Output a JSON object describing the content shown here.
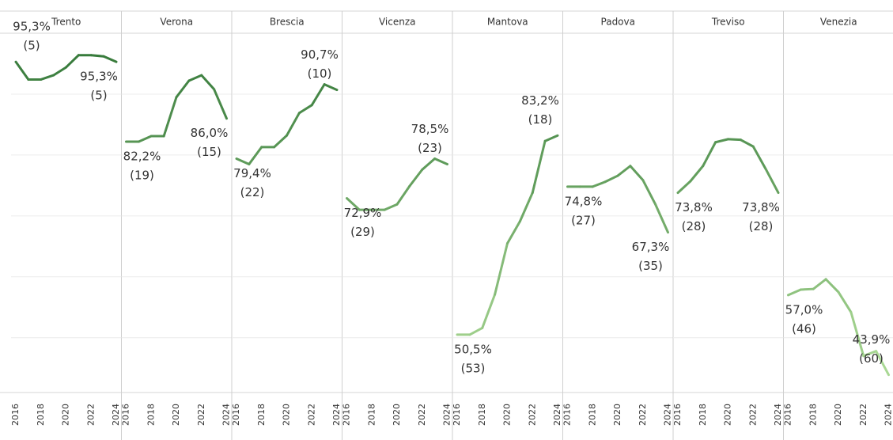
{
  "chart_data": [
    {
      "type": "line",
      "title": "Trento",
      "x": [
        2016,
        2017,
        2018,
        2019,
        2020,
        2021,
        2022,
        2023,
        2024
      ],
      "xticks": [
        2016,
        2018,
        2020,
        2022,
        2024
      ],
      "values": [
        95.3,
        92.4,
        92.4,
        93.1,
        94.4,
        96.4,
        96.4,
        96.2,
        95.3
      ],
      "value_labels": [
        "95,3%",
        null,
        null,
        null,
        null,
        null,
        null,
        null,
        "95,3%"
      ],
      "rank_labels": [
        "(5)",
        null,
        null,
        null,
        null,
        null,
        null,
        null,
        "(5)"
      ],
      "ylim": [
        41,
        100
      ],
      "yticks": [
        50,
        60,
        70,
        80,
        90
      ],
      "color_low": "#b4e19c",
      "color_high": "#2f7435"
    },
    {
      "type": "line",
      "title": "Verona",
      "x": [
        2016,
        2017,
        2018,
        2019,
        2020,
        2021,
        2022,
        2023,
        2024
      ],
      "xticks": [
        2016,
        2018,
        2020,
        2022,
        2024
      ],
      "values": [
        82.2,
        82.2,
        83.1,
        83.1,
        89.5,
        92.2,
        93.1,
        90.8,
        86.0
      ],
      "value_labels": [
        "82,2%",
        null,
        null,
        null,
        null,
        null,
        null,
        null,
        "86,0%"
      ],
      "rank_labels": [
        "(19)",
        null,
        null,
        null,
        null,
        null,
        null,
        null,
        "(15)"
      ],
      "ylim": [
        41,
        100
      ],
      "yticks": [
        50,
        60,
        70,
        80,
        90
      ],
      "color_low": "#b4e19c",
      "color_high": "#2f7435"
    },
    {
      "type": "line",
      "title": "Brescia",
      "x": [
        2016,
        2017,
        2018,
        2019,
        2020,
        2021,
        2022,
        2023,
        2024
      ],
      "xticks": [
        2016,
        2018,
        2020,
        2022,
        2024
      ],
      "values": [
        79.4,
        78.5,
        81.3,
        81.3,
        83.2,
        86.9,
        88.2,
        91.6,
        90.7
      ],
      "value_labels": [
        "79,4%",
        null,
        null,
        null,
        null,
        null,
        null,
        null,
        "90,7%"
      ],
      "rank_labels": [
        "(22)",
        null,
        null,
        null,
        null,
        null,
        null,
        null,
        "(10)"
      ],
      "ylim": [
        41,
        100
      ],
      "yticks": [
        50,
        60,
        70,
        80,
        90
      ],
      "color_low": "#b4e19c",
      "color_high": "#2f7435"
    },
    {
      "type": "line",
      "title": "Vicenza",
      "x": [
        2016,
        2017,
        2018,
        2019,
        2020,
        2021,
        2022,
        2023,
        2024
      ],
      "xticks": [
        2016,
        2018,
        2020,
        2022,
        2024
      ],
      "values": [
        72.9,
        71.0,
        71.0,
        71.0,
        71.9,
        74.9,
        77.6,
        79.4,
        78.5
      ],
      "value_labels": [
        "72,9%",
        null,
        null,
        null,
        null,
        null,
        null,
        null,
        "78,5%"
      ],
      "rank_labels": [
        "(29)",
        null,
        null,
        null,
        null,
        null,
        null,
        null,
        "(23)"
      ],
      "ylim": [
        41,
        100
      ],
      "yticks": [
        50,
        60,
        70,
        80,
        90
      ],
      "color_low": "#b4e19c",
      "color_high": "#2f7435"
    },
    {
      "type": "line",
      "title": "Mantova",
      "x": [
        2016,
        2017,
        2018,
        2019,
        2020,
        2021,
        2022,
        2023,
        2024
      ],
      "xticks": [
        2016,
        2018,
        2020,
        2022,
        2024
      ],
      "values": [
        50.5,
        50.5,
        51.6,
        57.1,
        65.5,
        69.1,
        73.8,
        82.3,
        83.2
      ],
      "value_labels": [
        "50,5%",
        null,
        null,
        null,
        null,
        null,
        null,
        null,
        "83,2%"
      ],
      "rank_labels": [
        "(53)",
        null,
        null,
        null,
        null,
        null,
        null,
        null,
        "(18)"
      ],
      "ylim": [
        41,
        100
      ],
      "yticks": [
        50,
        60,
        70,
        80,
        90
      ],
      "color_low": "#b4e19c",
      "color_high": "#2f7435"
    },
    {
      "type": "line",
      "title": "Padova",
      "x": [
        2016,
        2017,
        2018,
        2019,
        2020,
        2021,
        2022,
        2023,
        2024
      ],
      "xticks": [
        2016,
        2018,
        2020,
        2022,
        2024
      ],
      "values": [
        74.8,
        74.8,
        74.8,
        75.6,
        76.6,
        78.2,
        75.9,
        71.9,
        67.3
      ],
      "value_labels": [
        "74,8%",
        null,
        null,
        null,
        null,
        null,
        null,
        null,
        "67,3%"
      ],
      "rank_labels": [
        "(27)",
        null,
        null,
        null,
        null,
        null,
        null,
        null,
        "(35)"
      ],
      "ylim": [
        41,
        100
      ],
      "yticks": [
        50,
        60,
        70,
        80,
        90
      ],
      "color_low": "#b4e19c",
      "color_high": "#2f7435"
    },
    {
      "type": "line",
      "title": "Treviso",
      "x": [
        2016,
        2017,
        2018,
        2019,
        2020,
        2021,
        2022,
        2023,
        2024
      ],
      "xticks": [
        2016,
        2018,
        2020,
        2022,
        2024
      ],
      "values": [
        73.8,
        75.7,
        78.2,
        82.1,
        82.6,
        82.5,
        81.4,
        77.7,
        73.8
      ],
      "value_labels": [
        "73,8%",
        null,
        null,
        null,
        null,
        null,
        null,
        null,
        "73,8%"
      ],
      "rank_labels": [
        "(28)",
        null,
        null,
        null,
        null,
        null,
        null,
        null,
        "(28)"
      ],
      "ylim": [
        41,
        100
      ],
      "yticks": [
        50,
        60,
        70,
        80,
        90
      ],
      "color_low": "#b4e19c",
      "color_high": "#2f7435"
    },
    {
      "type": "line",
      "title": "Venezia",
      "x": [
        2016,
        2017,
        2018,
        2019,
        2020,
        2021,
        2022,
        2023,
        2024
      ],
      "xticks": [
        2016,
        2018,
        2020,
        2022,
        2024
      ],
      "values": [
        57.0,
        57.9,
        58.0,
        59.6,
        57.5,
        54.2,
        47.0,
        47.8,
        43.9
      ],
      "value_labels": [
        "57,0%",
        null,
        null,
        null,
        null,
        null,
        null,
        null,
        "43,9%"
      ],
      "rank_labels": [
        "(46)",
        null,
        null,
        null,
        null,
        null,
        null,
        null,
        "(60)"
      ],
      "ylim": [
        41,
        100
      ],
      "yticks": [
        50,
        60,
        70,
        80,
        90
      ],
      "color_low": "#b4e19c",
      "color_high": "#2f7435"
    }
  ]
}
